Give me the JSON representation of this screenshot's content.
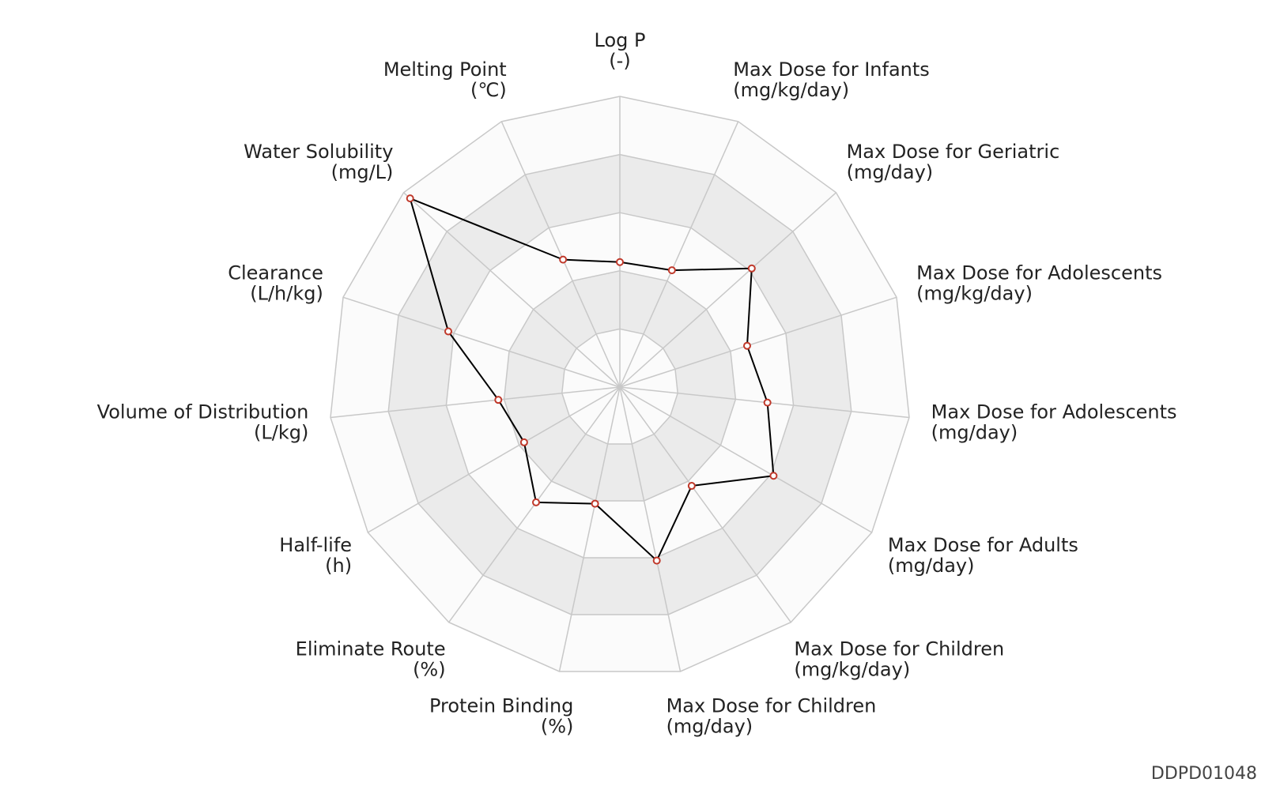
{
  "chart_data": {
    "type": "radar",
    "levels": 5,
    "range": [
      0,
      1
    ],
    "grid": true,
    "colors": {
      "ring_fill_light": "#fbfbfb",
      "ring_fill_dark": "#ebebeb",
      "grid_line": "#c8c8c8",
      "series_line": "#000000",
      "marker_edge": "#c0392b",
      "marker_fill": "#ffffff"
    },
    "axes": [
      {
        "name": "Log P",
        "unit": "(-)"
      },
      {
        "name": "Max Dose for Infants",
        "unit": "(mg/kg/day)"
      },
      {
        "name": "Max Dose for Geriatric",
        "unit": "(mg/day)"
      },
      {
        "name": "Max Dose for Adolescents",
        "unit": "(mg/kg/day)"
      },
      {
        "name": "Max Dose for Adolescents",
        "unit": "(mg/day)"
      },
      {
        "name": "Max Dose for Adults",
        "unit": "(mg/day)"
      },
      {
        "name": "Max Dose for Children",
        "unit": "(mg/kg/day)"
      },
      {
        "name": "Max Dose for Children",
        "unit": "(mg/day)"
      },
      {
        "name": "Protein Binding",
        "unit": "(%)"
      },
      {
        "name": "Eliminate Route",
        "unit": "(%)"
      },
      {
        "name": "Half-life",
        "unit": "(h)"
      },
      {
        "name": "Volume of Distribution",
        "unit": "(L/kg)"
      },
      {
        "name": "Clearance",
        "unit": "(L/h/kg)"
      },
      {
        "name": "Water Solubility",
        "unit": "(mg/L)"
      },
      {
        "name": "Melting Point",
        "unit": "(℃)"
      }
    ],
    "series": [
      {
        "values": [
          0.43,
          0.44,
          0.61,
          0.46,
          0.51,
          0.61,
          0.42,
          0.61,
          0.41,
          0.49,
          0.38,
          0.42,
          0.62,
          0.97,
          0.48
        ]
      }
    ]
  },
  "footer": {
    "id": "DDPD01048"
  }
}
